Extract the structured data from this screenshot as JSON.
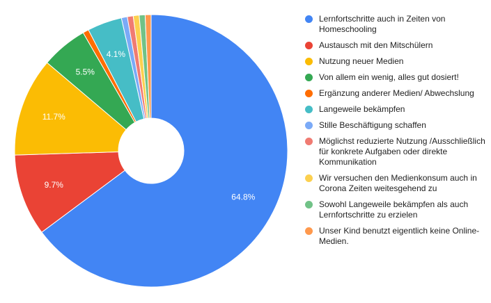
{
  "chart_data": {
    "type": "pie",
    "donut": true,
    "legend_position": "right",
    "slices": [
      {
        "label": "Lernfortschritte auch in Zeiten von Homeschooling",
        "value": 64.8,
        "display": "64.8%",
        "color": "#4285f4"
      },
      {
        "label": "Austausch mit den Mitschülern",
        "value": 9.7,
        "display": "9.7%",
        "color": "#ea4335"
      },
      {
        "label": "Nutzung neuer Medien",
        "value": 11.7,
        "display": "11.7%",
        "color": "#fbbc04"
      },
      {
        "label": "Von allem ein wenig, alles gut dosiert!",
        "value": 5.5,
        "display": "5.5%",
        "color": "#34a853"
      },
      {
        "label": "Ergänzung anderer Medien/ Abwechslung",
        "value": 0.7,
        "display": "",
        "color": "#ff6d01"
      },
      {
        "label": "Langeweile bekämpfen",
        "value": 4.1,
        "display": "4.1%",
        "color": "#46bdc6"
      },
      {
        "label": "Stille Beschäftigung schaffen",
        "value": 0.7,
        "display": "",
        "color": "#7baaf7"
      },
      {
        "label": "Möglichst reduzierte Nutzung /Ausschließlich für konkrete Aufgaben oder direkte Kommunikation",
        "value": 0.7,
        "display": "",
        "color": "#f07b72"
      },
      {
        "label": "Wir versuchen den Medienkonsum auch in Corona Zeiten weitesgehend zu",
        "value": 0.7,
        "display": "",
        "color": "#fcd04f"
      },
      {
        "label": "Sowohl Langeweile bekämpfen als auch Lernfortschritte zu erzielen",
        "value": 0.7,
        "display": "",
        "color": "#71c287"
      },
      {
        "label": "Unser Kind benutzt eigentlich keine Online-Medien.",
        "value": 0.7,
        "display": "",
        "color": "#ff994d"
      }
    ]
  }
}
